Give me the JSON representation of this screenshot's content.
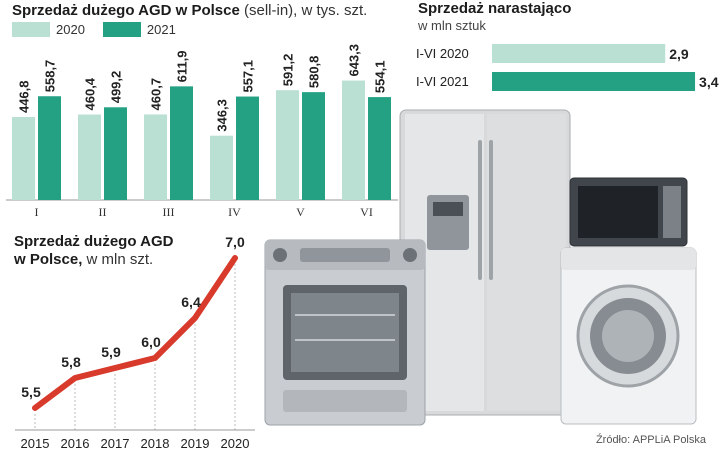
{
  "colors": {
    "light": "#b9e0d3",
    "dark": "#24a083",
    "line": "#d83a2c"
  },
  "charts_text": {
    "bar_title": "Sprzedaż dużego AGD w Polsce",
    "bar_subtitle": "(sell-in), w tys. szt.",
    "hbar_title": "Sprzedaż narastająco",
    "hbar_subtitle": "w mln sztuk",
    "line_title_1": "Sprzedaż dużego AGD",
    "line_title_2": "w Polsce,",
    "line_subtitle": "w mln szt.",
    "source": "Źródło: APPLiA Polska"
  },
  "chart_data": [
    {
      "type": "bar",
      "title": "Sprzedaż dużego AGD w Polsce (sell-in), w tys. szt.",
      "categories": [
        "I",
        "II",
        "III",
        "IV",
        "V",
        "VI"
      ],
      "series": [
        {
          "name": "2020",
          "values": [
            446.8,
            460.4,
            460.7,
            346.3,
            591.2,
            643.3
          ],
          "labels": [
            "446,8",
            "460,4",
            "460,7",
            "346,3",
            "591,2",
            "643,3"
          ]
        },
        {
          "name": "2021",
          "values": [
            558.7,
            499.2,
            611.9,
            557.1,
            580.8,
            554.1
          ],
          "labels": [
            "558,7",
            "499,2",
            "611,9",
            "557,1",
            "580,8",
            "554,1"
          ]
        }
      ],
      "ylim": [
        0,
        700
      ]
    },
    {
      "type": "bar",
      "orientation": "horizontal",
      "title": "Sprzedaż narastająco",
      "subtitle": "w mln sztuk",
      "categories": [
        "I-VI 2020",
        "I-VI 2021"
      ],
      "values": [
        2.9,
        3.4
      ],
      "labels": [
        "2,9",
        "3,4"
      ],
      "xlim": [
        0,
        3.6
      ]
    },
    {
      "type": "line",
      "title": "Sprzedaż dużego AGD w Polsce, w mln szt.",
      "x": [
        "2015",
        "2016",
        "2017",
        "2018",
        "2019",
        "2020"
      ],
      "values": [
        5.5,
        5.8,
        5.9,
        6.0,
        6.4,
        7.0
      ],
      "labels": [
        "5,5",
        "5,8",
        "5,9",
        "6,0",
        "6,4",
        "7,0"
      ],
      "ylim": [
        5.3,
        7.1
      ]
    }
  ]
}
